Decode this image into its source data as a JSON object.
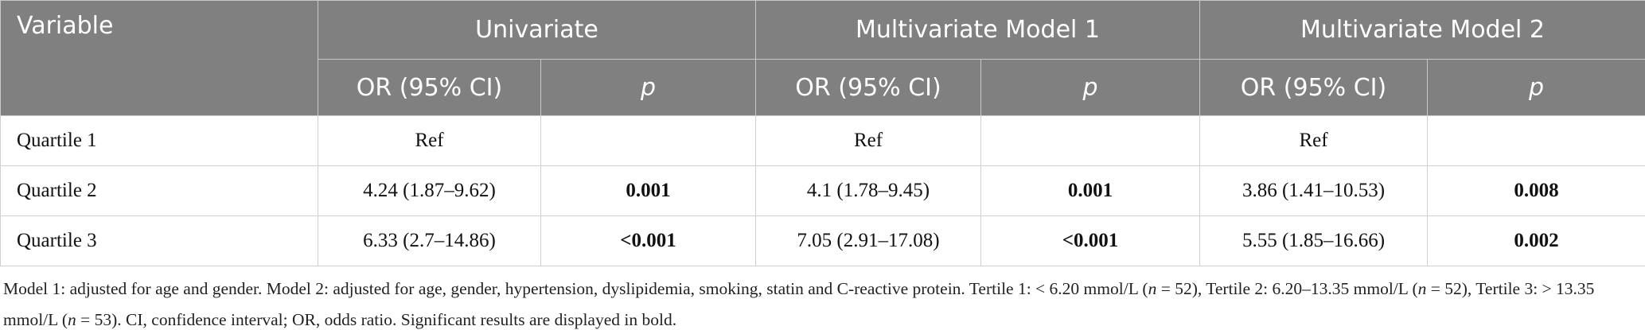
{
  "table": {
    "header_top": [
      "Variable",
      "Univariate",
      "Multivariate Model 1",
      "Multivariate Model 2"
    ],
    "header_sub": [
      "OR (95% CI)",
      "p",
      "OR (95% CI)",
      "p",
      "OR (95% CI)",
      "p"
    ],
    "rows": [
      [
        "Quartile 1",
        "Ref",
        null,
        "Ref",
        null,
        "Ref",
        null
      ],
      [
        "Quartile 2",
        "4.24 (1.87–9.62)",
        "0.001",
        "4.1 (1.78–9.45)",
        "0.001",
        "3.86 (1.41–10.53)",
        "0.008"
      ],
      [
        "Quartile 3",
        "6.33 (2.7–14.86)",
        "<0.001",
        "7.05 (2.91–17.08)",
        "<0.001",
        "5.55 (1.85–16.66)",
        "0.002"
      ]
    ]
  },
  "footnote": [
    {
      "text": "Model 1: adjusted for age and gender. Model 2: adjusted for age, gender, hypertension, dyslipidemia, smoking, statin and C-reactive protein. Tertile 1: < 6.20 mmol/L ("
    },
    {
      "text": "n",
      "italic": true
    },
    {
      "text": " = 52), Tertile 2: 6.20–13.35 mmol/L ("
    },
    {
      "text": "n",
      "italic": true
    },
    {
      "text": " = 52), Tertile 3: > 13.35 mmol/L ("
    },
    {
      "text": "n",
      "italic": true
    },
    {
      "text": " = 53). CI, confidence interval; OR, odds ratio. Significant results are displayed in bold."
    }
  ]
}
